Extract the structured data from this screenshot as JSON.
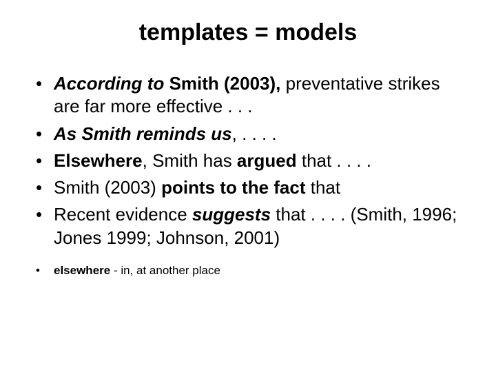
{
  "title": "templates = models",
  "bullets": [
    {
      "runs": [
        {
          "t": "According to ",
          "cls": "bi"
        },
        {
          "t": "Smith (2003), ",
          "cls": "b"
        },
        {
          "t": "preventative strikes are far more effective . . ."
        }
      ]
    },
    {
      "runs": [
        {
          "t": "As Smith reminds us",
          "cls": "bi"
        },
        {
          "t": ", . . . ."
        }
      ]
    },
    {
      "runs": [
        {
          "t": "Elsewhere",
          "cls": "b"
        },
        {
          "t": ", Smith has "
        },
        {
          "t": "argued ",
          "cls": "b"
        },
        {
          "t": "that . . . ."
        }
      ]
    },
    {
      "runs": [
        {
          "t": "Smith (2003) "
        },
        {
          "t": "points to the fact ",
          "cls": "b"
        },
        {
          "t": "that"
        }
      ]
    },
    {
      "runs": [
        {
          "t": "Recent evidence "
        },
        {
          "t": "suggests ",
          "cls": "bi"
        },
        {
          "t": "that . . . . (Smith, 1996; Jones 1999; Johnson, 2001)"
        }
      ]
    }
  ],
  "footnote": {
    "runs": [
      {
        "t": "elsewhere ",
        "cls": "b"
      },
      {
        "t": "- in, at another place"
      }
    ]
  },
  "colors": {
    "background": "#ffffff",
    "text": "#000000"
  },
  "fontsizes": {
    "title": 34,
    "bullet": 26,
    "footnote": 17
  }
}
